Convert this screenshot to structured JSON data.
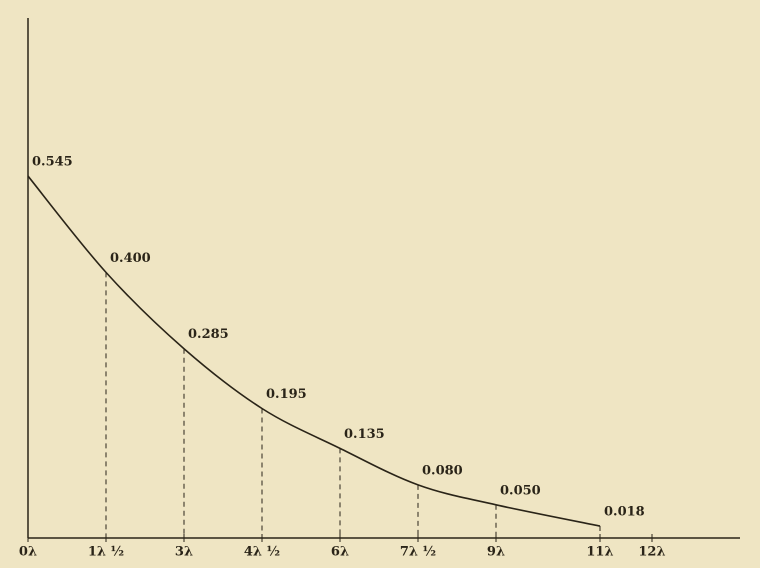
{
  "chart_data": {
    "type": "line",
    "x": [
      0,
      1.5,
      3,
      4.5,
      6,
      7.5,
      9,
      11
    ],
    "values": [
      0.545,
      0.4,
      0.285,
      0.195,
      0.135,
      0.08,
      0.05,
      0.018
    ],
    "value_labels": [
      "0.545",
      "0.400",
      "0.285",
      "0.195",
      "0.135",
      "0.080",
      "0.050",
      "0.018"
    ],
    "color": "#2a2418",
    "xlim": [
      0,
      13.5
    ],
    "ylim": [
      0,
      0.78
    ],
    "xticks": [
      {
        "value": 0,
        "label": "0λ"
      },
      {
        "value": 1.5,
        "label": "1λ ½"
      },
      {
        "value": 3,
        "label": "3λ"
      },
      {
        "value": 4.5,
        "label": "4λ ½"
      },
      {
        "value": 6,
        "label": "6λ"
      },
      {
        "value": 7.5,
        "label": "7λ ½"
      },
      {
        "value": 9,
        "label": "9λ"
      },
      {
        "value": 11,
        "label": "11λ"
      },
      {
        "value": 12,
        "label": "12λ"
      }
    ]
  }
}
